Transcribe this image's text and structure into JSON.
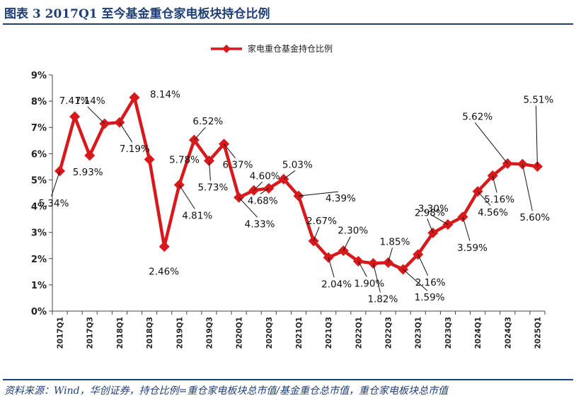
{
  "figure": {
    "title": "图表 3   2017Q1 至今基金重仓家电板块持仓比例",
    "source": "资料来源：Wind，华创证券，持仓比例=重仓家电板块总市值/基金重仓总市值，重仓家电板块总市值"
  },
  "colors": {
    "series": "#d7191c",
    "accent": "#1f3f75"
  },
  "chart_data": {
    "type": "line",
    "title": "",
    "xlabel": "",
    "ylabel": "",
    "ylim": [
      0,
      9
    ],
    "yticks": [
      "0%",
      "1%",
      "2%",
      "3%",
      "4%",
      "5%",
      "6%",
      "7%",
      "8%",
      "9%"
    ],
    "legend_position": "top-center",
    "x": [
      "2017Q1",
      "2017Q2",
      "2017Q3",
      "2017Q4",
      "2018Q1",
      "2018Q2",
      "2018Q3",
      "2018Q4",
      "2019Q1",
      "2019Q2",
      "2019Q3",
      "2019Q4",
      "2020Q1",
      "2020Q2",
      "2020Q3",
      "2020Q4",
      "2021Q1",
      "2021Q2",
      "2021Q3",
      "2021Q4",
      "2022Q1",
      "2022Q2",
      "2022Q3",
      "2022Q4",
      "2023Q1",
      "2023Q2",
      "2023Q3",
      "2023Q4",
      "2024Q1",
      "2024Q2",
      "2024Q3",
      "2024Q4",
      "2025Q1"
    ],
    "xtick_labels": [
      "2017Q1",
      "2017Q3",
      "2018Q1",
      "2018Q3",
      "2019Q1",
      "2019Q3",
      "2020Q1",
      "2020Q3",
      "2021Q1",
      "2021Q3",
      "2022Q1",
      "2022Q3",
      "2023Q1",
      "2023Q3",
      "2024Q1",
      "2024Q3",
      "2025Q1"
    ],
    "series": [
      {
        "name": "家电重仓基金持仓比例",
        "values": [
          5.34,
          7.41,
          5.93,
          7.14,
          7.19,
          8.14,
          5.78,
          2.46,
          4.81,
          6.52,
          5.73,
          6.37,
          4.33,
          4.6,
          4.68,
          5.03,
          4.39,
          2.67,
          2.04,
          2.3,
          1.9,
          1.82,
          1.85,
          1.59,
          2.16,
          2.98,
          3.3,
          3.59,
          4.56,
          5.16,
          5.62,
          5.6,
          5.51
        ]
      }
    ],
    "data_labels": [
      "5.34%",
      "7.41%",
      "5.93%",
      "7.14%",
      "7.19%",
      "8.14%",
      "5.78%",
      "2.46%",
      "4.81%",
      "6.52%",
      "5.73%",
      "6.37%",
      "4.33%",
      "4.60%",
      "4.68%",
      "5.03%",
      "4.39%",
      "2.67%",
      "2.04%",
      "2.30%",
      "1.90%",
      "1.82%",
      "1.85%",
      "1.59%",
      "2.16%",
      "2.98%",
      "3.30%",
      "3.59%",
      "4.56%",
      "5.16%",
      "5.62%",
      "5.60%",
      "5.51%"
    ]
  }
}
